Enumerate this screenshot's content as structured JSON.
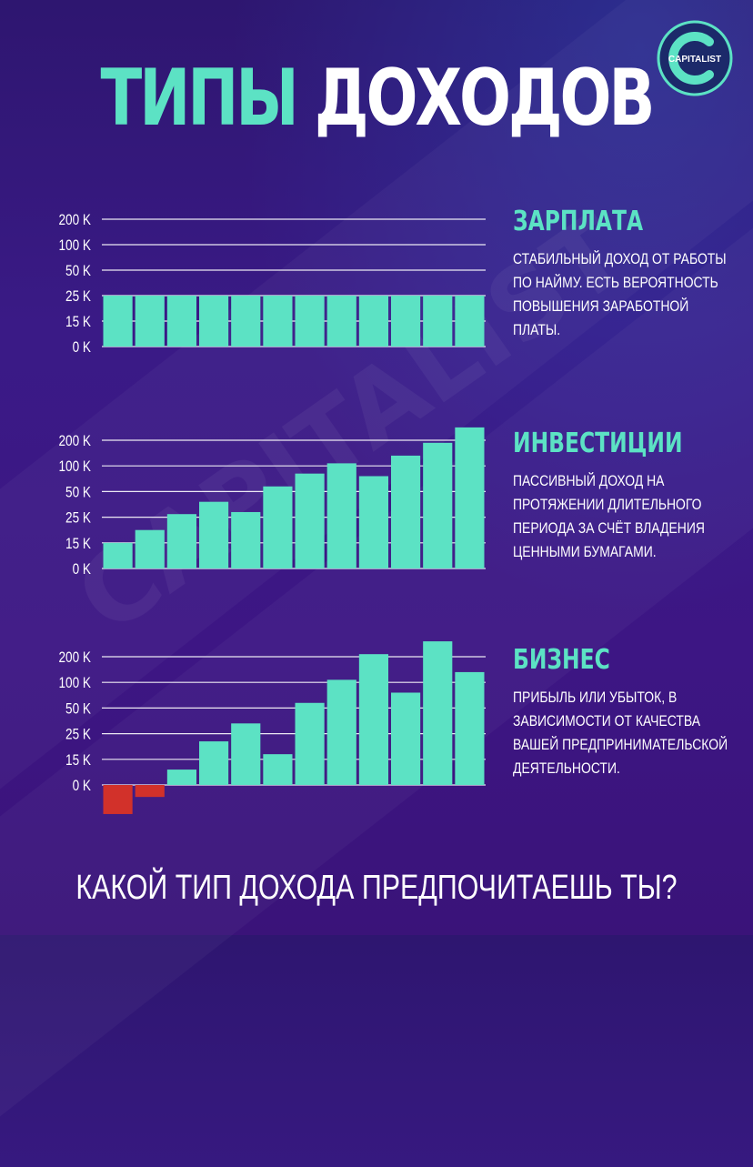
{
  "header": {
    "title_part1": "ТИПЫ",
    "title_part2": "ДОХОДОВ",
    "logo_text": "CAPITALIST",
    "watermark_text": "CAPITALIST"
  },
  "colors": {
    "accent": "#5ce2c4",
    "negative": "#d2312a",
    "background": "#35187d",
    "text": "#ffffff"
  },
  "chart_data": [
    {
      "type": "bar",
      "title": "ЗАРПЛАТА",
      "description": "СТАБИЛЬНЫЙ ДОХОД ОТ РАБОТЫ ПО НАЙМУ. ЕСТЬ ВЕРОЯТНОСТЬ ПОВЫШЕНИЯ ЗАРАБОТНОЙ ПЛАТЫ.",
      "y_ticks": [
        "0 K",
        "15 K",
        "25 K",
        "50 K",
        "100 K",
        "200 K"
      ],
      "y_scale": "categorical ticks (0, 15, 25, 50, 100, 200 K)",
      "values": [
        25,
        25,
        25,
        25,
        25,
        25,
        25,
        25,
        25,
        25,
        25,
        25
      ],
      "grid": true
    },
    {
      "type": "bar",
      "title": "ИНВЕСТИЦИИ",
      "description": "ПАССИВНЫЙ ДОХОД НА ПРОТЯЖЕНИИ ДЛИТЕЛЬНОГО ПЕРИОДА ЗА СЧЁТ ВЛАДЕНИЯ ЦЕННЫМИ БУМАГАМИ.",
      "y_ticks": [
        "0 K",
        "15 K",
        "25 K",
        "50 K",
        "100 K",
        "200 K"
      ],
      "y_scale": "categorical ticks (0, 15, 25, 50, 100, 200 K)",
      "values": [
        15,
        20,
        28,
        40,
        30,
        60,
        85,
        110,
        80,
        140,
        190,
        250
      ],
      "grid": true
    },
    {
      "type": "bar",
      "title": "БИЗНЕС",
      "description": "ПРИБЫЛЬ ИЛИ УБЫТОК, В ЗАВИСИМОСТИ ОТ КАЧЕСТВА ВАШЕЙ ПРЕДПРИНИМАТЕЛЬСКОЙ ДЕЯТЕЛЬНОСТИ.",
      "y_ticks": [
        "0 K",
        "15 K",
        "25 K",
        "50 K",
        "100 K",
        "200 K"
      ],
      "y_scale": "categorical ticks (0, 15, 25, 50, 100, 200 K)",
      "values": [
        -17,
        -7,
        9,
        22,
        35,
        17,
        60,
        110,
        210,
        80,
        260,
        140
      ],
      "grid": true
    }
  ],
  "footer": {
    "question": "КАКОЙ ТИП ДОХОДА ПРЕДПОЧИТАЕШЬ ТЫ?"
  }
}
